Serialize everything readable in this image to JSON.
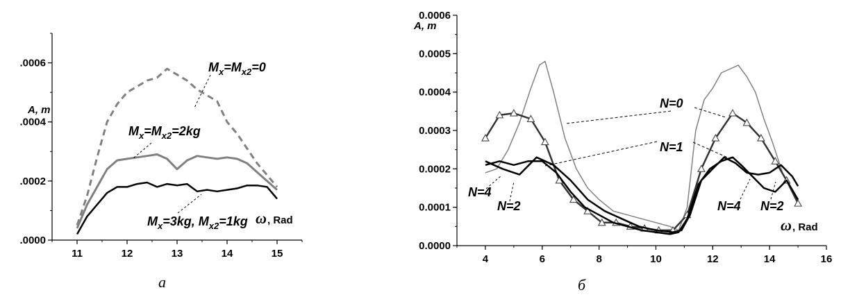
{
  "chart_data": [
    {
      "type": "line",
      "panel_caption": "а",
      "ylabel": "A, m",
      "xlabel": "ω, Rad",
      "xlim": [
        10.5,
        15.5
      ],
      "ylim": [
        0,
        0.0007
      ],
      "xticks": [
        "11",
        "12",
        "13",
        "14",
        "15"
      ],
      "yticks": [
        ".0000",
        ".0002",
        ".0004",
        ".0006"
      ],
      "series": [
        {
          "label_parts": [
            "M",
            "x",
            "=M",
            "x2",
            "=0"
          ],
          "color": "#808080",
          "dashed": true,
          "width": 3,
          "x": [
            11.0,
            11.2,
            11.4,
            11.6,
            11.8,
            12.0,
            12.2,
            12.4,
            12.6,
            12.8,
            13.0,
            13.2,
            13.4,
            13.6,
            13.8,
            14.0,
            14.2,
            14.4,
            14.6,
            14.8,
            15.0
          ],
          "y": [
            5e-05,
            0.00015,
            0.00028,
            0.0004,
            0.00046,
            0.0005,
            0.00052,
            0.00054,
            0.00055,
            0.00058,
            0.00056,
            0.00054,
            0.00051,
            0.00049,
            0.00047,
            0.0004,
            0.00036,
            0.00031,
            0.00026,
            0.00022,
            0.00018
          ]
        },
        {
          "label_parts": [
            "M",
            "x",
            "=M",
            "x2",
            "=2kg"
          ],
          "color": "#808080",
          "dashed": false,
          "width": 3,
          "x": [
            11.0,
            11.2,
            11.4,
            11.6,
            11.8,
            12.0,
            12.2,
            12.4,
            12.6,
            12.8,
            13.0,
            13.2,
            13.4,
            13.6,
            13.8,
            14.0,
            14.2,
            14.4,
            14.6,
            14.8,
            15.0
          ],
          "y": [
            4e-05,
            0.00012,
            0.00018,
            0.00024,
            0.00027,
            0.000275,
            0.00028,
            0.000285,
            0.00029,
            0.000275,
            0.00024,
            0.00027,
            0.000285,
            0.00028,
            0.000275,
            0.00028,
            0.000275,
            0.00026,
            0.00023,
            0.0002,
            0.00017
          ]
        },
        {
          "label_parts": [
            "M",
            "x",
            "=3kg, M",
            "x2",
            "=1kg"
          ],
          "color": "#000000",
          "dashed": false,
          "width": 2.5,
          "x": [
            11.0,
            11.2,
            11.4,
            11.6,
            11.8,
            12.0,
            12.2,
            12.4,
            12.6,
            12.8,
            13.0,
            13.2,
            13.4,
            13.6,
            13.8,
            14.0,
            14.2,
            14.4,
            14.6,
            14.8,
            15.0
          ],
          "y": [
            2e-05,
            8e-05,
            0.00012,
            0.00016,
            0.00018,
            0.00018,
            0.00019,
            0.000195,
            0.00018,
            0.00019,
            0.000185,
            0.00019,
            0.000165,
            0.00017,
            0.000165,
            0.00017,
            0.000175,
            0.000185,
            0.000185,
            0.00018,
            0.00014
          ]
        }
      ]
    },
    {
      "type": "line",
      "panel_caption": "б",
      "ylabel": "A, m",
      "xlabel": "ω, Rad",
      "xlim": [
        3,
        16
      ],
      "ylim": [
        0,
        0.0006
      ],
      "xticks": [
        "4",
        "6",
        "8",
        "10",
        "12",
        "14",
        "16"
      ],
      "yticks": [
        "0.0000",
        "0.0001",
        "0.0002",
        "0.0003",
        "0.0004",
        "0.0005",
        "0.0006"
      ],
      "series": [
        {
          "name": "N=0",
          "color": "#808080",
          "width": 1.5,
          "markers": false,
          "x": [
            4.0,
            4.4,
            4.8,
            5.2,
            5.6,
            5.9,
            6.1,
            6.4,
            6.8,
            7.2,
            7.6,
            8.0,
            8.5,
            9.0,
            9.5,
            10.0,
            10.5,
            10.8,
            11.1,
            11.4,
            11.7,
            12.0,
            12.3,
            12.6,
            12.9,
            13.2,
            13.5,
            13.8,
            14.1,
            14.5,
            15.0
          ],
          "y": [
            0.00019,
            0.0002,
            0.00025,
            0.00032,
            0.00041,
            0.00047,
            0.00048,
            0.0004,
            0.00028,
            0.0002,
            0.00015,
            0.00012,
            9e-05,
            8e-05,
            7e-05,
            6e-05,
            5e-05,
            4e-05,
            0.0001,
            0.0003,
            0.00038,
            0.00041,
            0.00045,
            0.00046,
            0.00047,
            0.00044,
            0.0004,
            0.00033,
            0.00027,
            0.00018,
            0.00012
          ]
        },
        {
          "name": "N=1",
          "color": "#333333",
          "width": 2.5,
          "markers": true,
          "x": [
            4.0,
            4.5,
            5.0,
            5.6,
            6.1,
            6.6,
            7.1,
            7.6,
            8.1,
            8.6,
            9.1,
            9.6,
            10.1,
            10.6,
            11.1,
            11.6,
            12.1,
            12.7,
            13.2,
            13.7,
            14.2,
            14.6,
            15.0
          ],
          "y": [
            0.00028,
            0.00034,
            0.000345,
            0.00033,
            0.00027,
            0.00017,
            0.00012,
            9e-05,
            6e-05,
            6e-05,
            5e-05,
            4.5e-05,
            4e-05,
            4e-05,
            8e-05,
            0.0002,
            0.00028,
            0.000345,
            0.00032,
            0.00028,
            0.00022,
            0.00017,
            0.00011
          ]
        },
        {
          "name": "N=2",
          "color": "#000000",
          "width": 2.5,
          "markers": false,
          "x": [
            4.0,
            4.6,
            5.2,
            5.8,
            6.4,
            7.0,
            7.6,
            8.2,
            8.8,
            9.4,
            10.0,
            10.6,
            10.9,
            11.2,
            11.6,
            12.0,
            12.4,
            12.8,
            13.2,
            13.6,
            14.0,
            14.4,
            14.8,
            15.0
          ],
          "y": [
            0.00022,
            0.0002,
            0.000185,
            0.00023,
            0.00021,
            0.00017,
            0.00012,
            9e-05,
            7e-05,
            5e-05,
            4e-05,
            3.5e-05,
            4e-05,
            8e-05,
            0.00017,
            0.0002,
            0.00023,
            0.000215,
            0.00019,
            0.000185,
            0.00019,
            0.00021,
            0.00018,
            0.000155
          ]
        },
        {
          "name": "N=4",
          "color": "#000000",
          "width": 2.5,
          "markers": false,
          "x": [
            4.0,
            4.5,
            5.0,
            5.5,
            6.0,
            6.5,
            7.0,
            7.5,
            8.0,
            8.5,
            9.0,
            9.5,
            10.0,
            10.5,
            10.8,
            11.1,
            11.5,
            11.9,
            12.3,
            12.7,
            13.0,
            13.4,
            13.8,
            14.2,
            14.6,
            15.0
          ],
          "y": [
            0.00021,
            0.00022,
            0.00021,
            0.00022,
            0.00022,
            0.00019,
            0.00014,
            0.0001,
            8e-05,
            6e-05,
            5e-05,
            4e-05,
            3.5e-05,
            3e-05,
            3.5e-05,
            7e-05,
            0.00016,
            0.0002,
            0.00022,
            0.00023,
            0.00021,
            0.00018,
            0.00015,
            0.00014,
            0.00017,
            0.00012
          ]
        }
      ]
    }
  ]
}
